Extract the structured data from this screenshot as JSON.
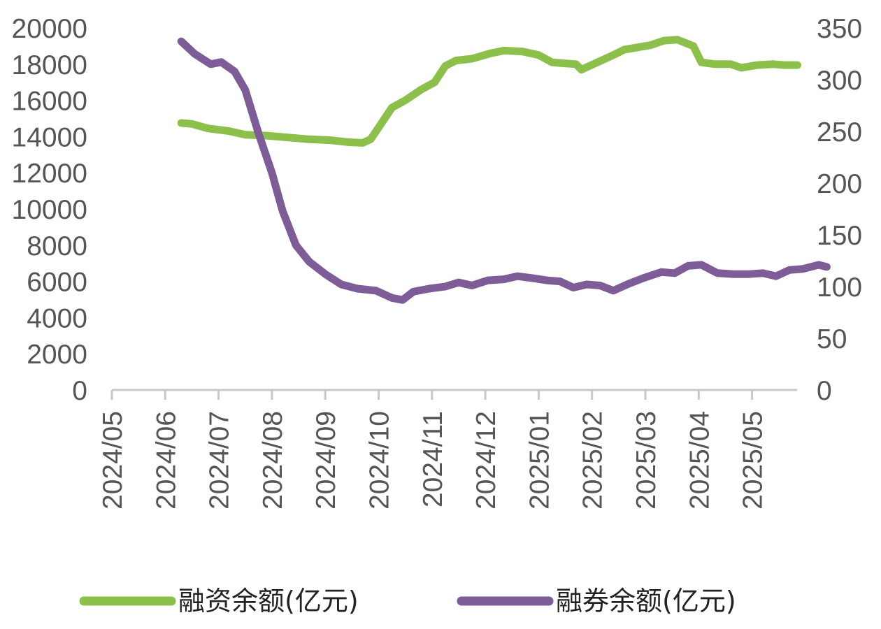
{
  "chart_data": {
    "type": "line",
    "x_categories": [
      "2024/05",
      "2024/06",
      "2024/07",
      "2024/08",
      "2024/09",
      "2024/10",
      "2024/11",
      "2024/12",
      "2025/01",
      "2025/02",
      "2025/03",
      "2025/04",
      "2025/05"
    ],
    "y_left": {
      "range": [
        0,
        20000
      ],
      "ticks": [
        "0",
        "2000",
        "4000",
        "6000",
        "8000",
        "10000",
        "12000",
        "14000",
        "16000",
        "18000",
        "20000"
      ]
    },
    "y_right": {
      "range": [
        0,
        350
      ],
      "ticks": [
        "0",
        "50",
        "100",
        "150",
        "200",
        "250",
        "300",
        "350"
      ]
    },
    "grid": false,
    "legend_position": "bottom",
    "series": [
      {
        "name": "融资余额(亿元)",
        "axis": "left",
        "color": "#8cc04b",
        "points": [
          [
            1.3,
            14750
          ],
          [
            1.5,
            14700
          ],
          [
            1.8,
            14450
          ],
          [
            2.2,
            14300
          ],
          [
            2.5,
            14100
          ],
          [
            2.9,
            14050
          ],
          [
            3.3,
            13950
          ],
          [
            3.7,
            13850
          ],
          [
            4.1,
            13800
          ],
          [
            4.4,
            13700
          ],
          [
            4.7,
            13650
          ],
          [
            4.85,
            13850
          ],
          [
            5.0,
            14500
          ],
          [
            5.25,
            15600
          ],
          [
            5.5,
            16000
          ],
          [
            5.8,
            16600
          ],
          [
            6.05,
            17000
          ],
          [
            6.25,
            17900
          ],
          [
            6.45,
            18200
          ],
          [
            6.75,
            18300
          ],
          [
            7.1,
            18600
          ],
          [
            7.35,
            18750
          ],
          [
            7.7,
            18700
          ],
          [
            8.0,
            18500
          ],
          [
            8.25,
            18100
          ],
          [
            8.45,
            18050
          ],
          [
            8.7,
            18000
          ],
          [
            8.8,
            17700
          ],
          [
            9.1,
            18100
          ],
          [
            9.4,
            18500
          ],
          [
            9.6,
            18800
          ],
          [
            9.9,
            18950
          ],
          [
            10.1,
            19050
          ],
          [
            10.35,
            19300
          ],
          [
            10.6,
            19350
          ],
          [
            10.9,
            19000
          ],
          [
            11.05,
            18100
          ],
          [
            11.3,
            18000
          ],
          [
            11.6,
            18000
          ],
          [
            11.8,
            17800
          ],
          [
            12.1,
            17950
          ],
          [
            12.4,
            18000
          ],
          [
            12.6,
            17950
          ],
          [
            12.85,
            17950
          ]
        ]
      },
      {
        "name": "融券余额(亿元)",
        "axis": "right",
        "color": "#7d5c97",
        "points": [
          [
            1.3,
            337
          ],
          [
            1.55,
            325
          ],
          [
            1.85,
            315
          ],
          [
            2.05,
            317
          ],
          [
            2.3,
            308
          ],
          [
            2.5,
            290
          ],
          [
            2.75,
            248
          ],
          [
            3.0,
            210
          ],
          [
            3.2,
            173
          ],
          [
            3.45,
            140
          ],
          [
            3.7,
            124
          ],
          [
            4.0,
            112
          ],
          [
            4.3,
            102
          ],
          [
            4.6,
            98
          ],
          [
            4.95,
            96
          ],
          [
            5.25,
            89
          ],
          [
            5.45,
            87
          ],
          [
            5.65,
            95
          ],
          [
            5.95,
            98
          ],
          [
            6.25,
            100
          ],
          [
            6.5,
            104
          ],
          [
            6.75,
            101
          ],
          [
            7.05,
            106
          ],
          [
            7.35,
            107
          ],
          [
            7.6,
            110
          ],
          [
            7.9,
            108
          ],
          [
            8.15,
            106
          ],
          [
            8.4,
            105
          ],
          [
            8.65,
            99
          ],
          [
            8.9,
            102
          ],
          [
            9.15,
            101
          ],
          [
            9.4,
            96
          ],
          [
            9.7,
            103
          ],
          [
            9.95,
            108
          ],
          [
            10.3,
            114
          ],
          [
            10.55,
            113
          ],
          [
            10.8,
            120
          ],
          [
            11.05,
            121
          ],
          [
            11.35,
            113
          ],
          [
            11.65,
            112
          ],
          [
            11.95,
            112
          ],
          [
            12.2,
            113
          ],
          [
            12.45,
            110
          ],
          [
            12.7,
            116
          ],
          [
            12.95,
            117
          ],
          [
            13.25,
            121
          ],
          [
            13.4,
            119
          ]
        ]
      }
    ]
  }
}
